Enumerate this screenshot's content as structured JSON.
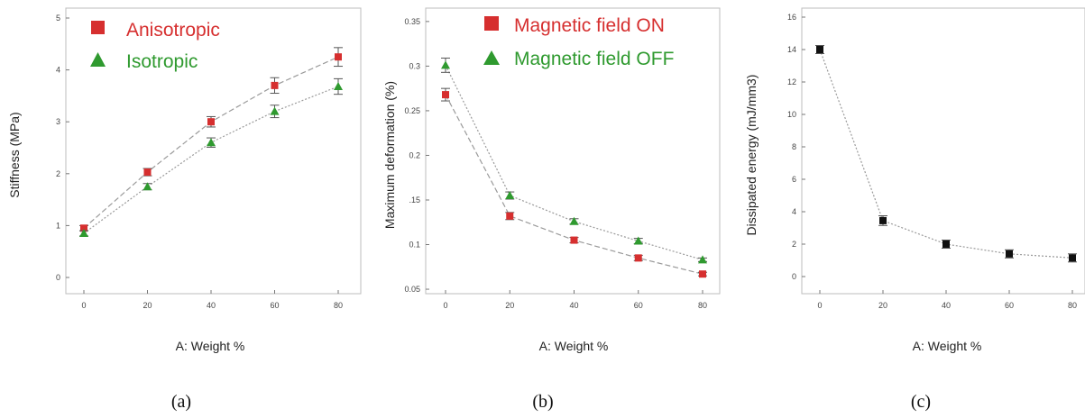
{
  "colors": {
    "red": "#d62f2f",
    "green": "#2f9a2f",
    "black": "#111111",
    "line": "#9a9a9a",
    "errorbar": "#555555"
  },
  "chart_data": [
    {
      "type": "line",
      "caption": "(a)",
      "xlabel": "A: Weight %",
      "ylabel": "Stiffness (MPa)",
      "x": [
        0,
        20,
        40,
        60,
        80
      ],
      "xticks": [
        "0",
        "20",
        "40",
        "60",
        "80"
      ],
      "yticks": [
        "0",
        "1",
        "2",
        "3",
        "4",
        "5"
      ],
      "xlim": [
        0,
        80
      ],
      "ylim": [
        0,
        5
      ],
      "legend_position": "top-left",
      "series": [
        {
          "name": "Anisotropic",
          "marker": "square",
          "color": "#d62f2f",
          "y": [
            0.95,
            2.03,
            3.0,
            3.7,
            4.25
          ],
          "err": [
            0.05,
            0.07,
            0.1,
            0.15,
            0.18
          ]
        },
        {
          "name": "Isotropic",
          "marker": "triangle",
          "color": "#2f9a2f",
          "y": [
            0.85,
            1.75,
            2.6,
            3.2,
            3.68
          ],
          "err": [
            0.05,
            0.06,
            0.09,
            0.12,
            0.15
          ]
        }
      ]
    },
    {
      "type": "line",
      "caption": "(b)",
      "xlabel": "A: Weight %",
      "ylabel": "Maximum deformation (%)",
      "x": [
        0,
        20,
        40,
        60,
        80
      ],
      "xticks": [
        "0",
        "20",
        "40",
        "60",
        "80"
      ],
      "yticks": [
        "0.05",
        "0.1",
        ".15",
        "0.2",
        "0.25",
        "0.3",
        "0.35"
      ],
      "ytick_values": [
        0.05,
        0.1,
        0.15,
        0.2,
        0.25,
        0.3,
        0.35
      ],
      "xlim": [
        0,
        80
      ],
      "ylim": [
        0.045,
        0.365
      ],
      "legend_position": "top-right",
      "series": [
        {
          "name": "Magnetic field ON",
          "marker": "square",
          "color": "#d62f2f",
          "y": [
            0.268,
            0.132,
            0.105,
            0.085,
            0.067
          ],
          "err": [
            0.007,
            0.004,
            0.003,
            0.003,
            0.002
          ]
        },
        {
          "name": "Magnetic field OFF",
          "marker": "triangle",
          "color": "#2f9a2f",
          "y": [
            0.301,
            0.155,
            0.126,
            0.104,
            0.083
          ],
          "err": [
            0.008,
            0.004,
            0.003,
            0.003,
            0.002
          ]
        }
      ]
    },
    {
      "type": "line",
      "caption": "(c)",
      "xlabel": "A: Weight %",
      "ylabel": "Dissipated energy (mJ/mm3)",
      "x": [
        0,
        20,
        40,
        60,
        80
      ],
      "xticks": [
        "0",
        "20",
        "40",
        "60",
        "80"
      ],
      "yticks": [
        "0",
        "2",
        "4",
        "6",
        "8",
        "10",
        "12",
        "14",
        "16"
      ],
      "xlim": [
        0,
        80
      ],
      "ylim": [
        0,
        16
      ],
      "series": [
        {
          "marker": "square",
          "color": "#111111",
          "y": [
            14.0,
            3.45,
            2.0,
            1.4,
            1.15
          ],
          "err": [
            0.25,
            0.3,
            0.25,
            0.25,
            0.25
          ]
        }
      ]
    }
  ]
}
